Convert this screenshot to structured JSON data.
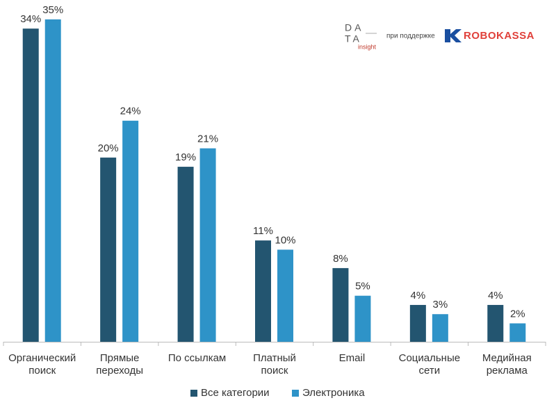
{
  "chart_data": {
    "type": "bar",
    "categories": [
      "Органический\nпоиск",
      "Прямые\nпереходы",
      "По ссылкам",
      "Платный\nпоиск",
      "Email",
      "Социальные\nсети",
      "Медийная\nреклама"
    ],
    "series": [
      {
        "name": "Все категории",
        "color": "#235570",
        "values": [
          34,
          20,
          19,
          11,
          8,
          4,
          4
        ],
        "value_labels": [
          "34%",
          "20%",
          "19%",
          "11%",
          "8%",
          "4%",
          "4%"
        ]
      },
      {
        "name": "Электроника",
        "color": "#2e93c8",
        "values": [
          35,
          24,
          21,
          10,
          5,
          3,
          2
        ],
        "value_labels": [
          "35%",
          "24%",
          "21%",
          "10%",
          "5%",
          "3%",
          "2%"
        ]
      }
    ],
    "legend": "bottom"
  },
  "branding": {
    "logo_top": "DA",
    "logo_mid": "TA",
    "logo_sub": "insight",
    "support": "при поддержке",
    "partner": "ROBOKASSA"
  }
}
